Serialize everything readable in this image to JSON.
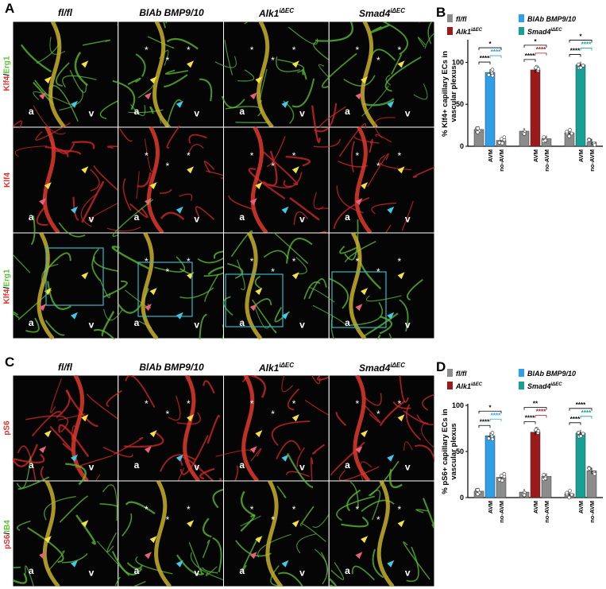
{
  "panels": {
    "A": "A",
    "B": "B",
    "C": "C",
    "D": "D"
  },
  "columns": {
    "c1": "fl/fl",
    "c2": "BlAb BMP9/10",
    "c3_main": "Alk1",
    "c3_sup": "iΔEC",
    "c4_main": "Smad4",
    "c4_sup": "iΔEC"
  },
  "rowlabels": {
    "a1": "Klf4",
    "a1_slash": "/",
    "a1_b": "Erg1",
    "a2": "Klf4",
    "a3": "Klf4",
    "a3_slash": "/",
    "a3_b": "Erg1",
    "c1": "pS6",
    "c2": "pS6",
    "c2_slash": "/",
    "c2_b": "IB4"
  },
  "vessel_letters": {
    "a": "a",
    "v": "v",
    "star": "*"
  },
  "legend": {
    "flfl": "fl/fl",
    "blab": "BlAb BMP9/10",
    "alk1_main": "Alk1",
    "alk1_sup": "iΔEC",
    "smad4_main": "Smad4",
    "smad4_sup": "iΔEC"
  },
  "colors": {
    "flfl": "#8c8c8c",
    "blab": "#2ea0ea",
    "alk1": "#9b1b1b",
    "smad4": "#16a096",
    "red": "#e0302a",
    "green": "#5fc234"
  },
  "chart_data": [
    {
      "type": "bar",
      "ylabel": "% Klf4+ capillary ECs in vascular plexus",
      "ylim": [
        0,
        125
      ],
      "yticks": [
        0,
        50,
        100
      ],
      "categories": [
        "AVM",
        "no-AVM"
      ],
      "groups": [
        {
          "genotype": "fl/fl",
          "values": [
            20
          ]
        },
        {
          "genotype": "BlAb BMP9/10",
          "values": [
            88,
            7
          ]
        },
        {
          "genotype": "fl/fl",
          "values": [
            18
          ]
        },
        {
          "genotype": "Alk1 iΔEC",
          "values": [
            91,
            9
          ]
        },
        {
          "genotype": "fl/fl",
          "values": [
            16
          ]
        },
        {
          "genotype": "Smad4 iΔEC",
          "values": [
            97,
            5
          ]
        }
      ],
      "significance": [
        "****",
        "*",
        "****"
      ]
    },
    {
      "type": "bar",
      "ylabel": "% pS6+ capillary ECs in vascular plexus",
      "ylim": [
        0,
        100
      ],
      "yticks": [
        0,
        50,
        100
      ],
      "categories": [
        "AVM",
        "no-AVM"
      ],
      "groups": [
        {
          "genotype": "fl/fl",
          "values": [
            7
          ]
        },
        {
          "genotype": "BlAb BMP9/10",
          "values": [
            67,
            22
          ]
        },
        {
          "genotype": "fl/fl",
          "values": [
            6
          ]
        },
        {
          "genotype": "Alk1 iΔEC",
          "values": [
            71,
            23
          ]
        },
        {
          "genotype": "fl/fl",
          "values": [
            4
          ]
        },
        {
          "genotype": "Smad4 iΔEC",
          "values": [
            70,
            29
          ]
        }
      ],
      "significance": [
        "****",
        "*",
        "**"
      ]
    }
  ],
  "bar_labels": {
    "avm": "AVM",
    "noavm": "no-AVM"
  },
  "sig": {
    "s1": "*",
    "s2": "**",
    "s4": "****"
  },
  "tick": {
    "t0": "0",
    "t50": "50",
    "t100": "100"
  }
}
